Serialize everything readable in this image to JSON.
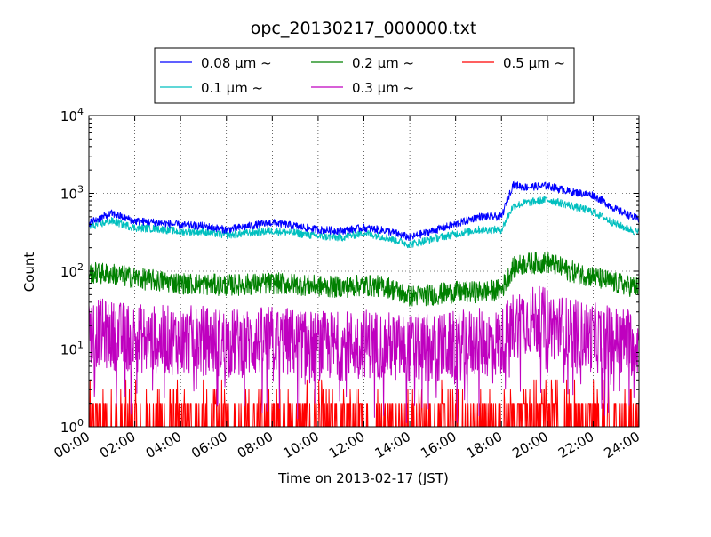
{
  "chart_data": {
    "type": "line",
    "title": "opc_20130217_000000.txt",
    "xlabel": "Time on 2013-02-17 (JST)",
    "ylabel": "Count",
    "x_range": [
      "00:00",
      "24:00"
    ],
    "x_ticks": [
      "00:00",
      "02:00",
      "04:00",
      "06:00",
      "08:00",
      "10:00",
      "12:00",
      "14:00",
      "16:00",
      "18:00",
      "20:00",
      "22:00",
      "24:00"
    ],
    "y_scale": "log",
    "ylim": [
      1,
      10000
    ],
    "y_ticks": [
      {
        "base": "10",
        "exp": "0",
        "value": 1
      },
      {
        "base": "10",
        "exp": "1",
        "value": 10
      },
      {
        "base": "10",
        "exp": "2",
        "value": 100
      },
      {
        "base": "10",
        "exp": "3",
        "value": 1000
      },
      {
        "base": "10",
        "exp": "4",
        "value": 10000
      }
    ],
    "grid": true,
    "legend_position": "top-center",
    "x": [
      "00:00",
      "01:00",
      "02:00",
      "03:00",
      "04:00",
      "05:00",
      "06:00",
      "07:00",
      "08:00",
      "09:00",
      "10:00",
      "11:00",
      "12:00",
      "13:00",
      "14:00",
      "15:00",
      "16:00",
      "17:00",
      "18:00",
      "18:30",
      "19:00",
      "20:00",
      "21:00",
      "22:00",
      "23:00",
      "24:00"
    ],
    "series": [
      {
        "name": "0.08 μm ~",
        "color": "#0000ff",
        "noise": 0.05,
        "spike": 0,
        "values": [
          420,
          550,
          440,
          420,
          390,
          380,
          340,
          380,
          420,
          380,
          340,
          330,
          360,
          330,
          270,
          330,
          400,
          500,
          500,
          1300,
          1200,
          1250,
          1050,
          950,
          620,
          460
        ]
      },
      {
        "name": "0.1 μm ~",
        "color": "#00bfbf",
        "noise": 0.05,
        "spike": 0,
        "values": [
          370,
          440,
          360,
          350,
          320,
          320,
          290,
          310,
          330,
          310,
          280,
          270,
          310,
          270,
          220,
          260,
          300,
          340,
          340,
          680,
          750,
          830,
          700,
          580,
          400,
          310
        ]
      },
      {
        "name": "0.2 μm ~",
        "color": "#008000",
        "noise": 0.14,
        "spike": 0,
        "values": [
          95,
          92,
          82,
          75,
          70,
          68,
          66,
          68,
          70,
          68,
          64,
          62,
          66,
          63,
          48,
          50,
          54,
          54,
          58,
          110,
          125,
          130,
          100,
          85,
          70,
          62
        ]
      },
      {
        "name": "0.3 μm ~",
        "color": "#bf00bf",
        "noise": 0.45,
        "spike": 0.06,
        "values": [
          17,
          15,
          14,
          13,
          13,
          13,
          12,
          12,
          13,
          12,
          11,
          11,
          12,
          11,
          10,
          10,
          11,
          12,
          12,
          20,
          24,
          22,
          16,
          14,
          13,
          12
        ]
      },
      {
        "name": "0.5 μm ~",
        "color": "#ff0000",
        "noise": 0,
        "spike": 0,
        "values": [
          1.5,
          1.5,
          1.5,
          1.5,
          1.5,
          1.5,
          1.5,
          1.5,
          1.5,
          1.5,
          1.5,
          1.5,
          1.5,
          1.5,
          1.5,
          1.5,
          1.5,
          1.5,
          1.5,
          2,
          2,
          2,
          1.6,
          1.5,
          1.5,
          1.5
        ]
      }
    ]
  }
}
